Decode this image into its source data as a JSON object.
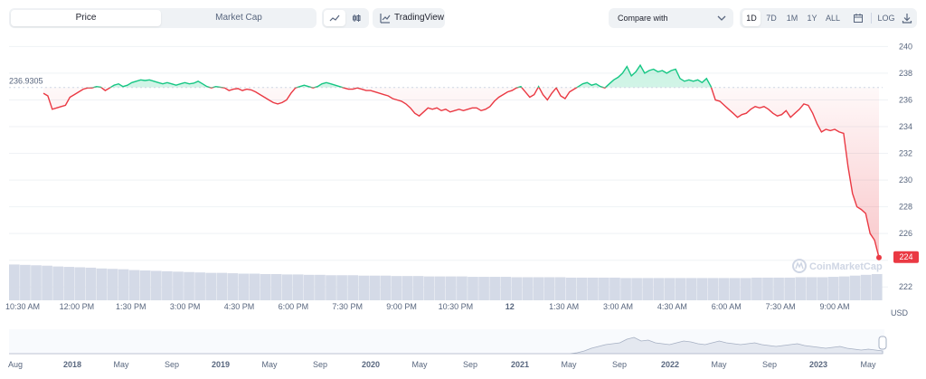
{
  "toolbar": {
    "tabs": [
      {
        "label": "Price",
        "active": true
      },
      {
        "label": "Market Cap",
        "active": false
      }
    ],
    "chart_type_icons": [
      "line-chart-icon",
      "candlestick-icon"
    ],
    "tradingview_label": "TradingView",
    "compare_label": "Compare with",
    "ranges": [
      "1D",
      "7D",
      "1M",
      "1Y",
      "ALL"
    ],
    "active_range": "1D",
    "log_label": "LOG"
  },
  "chart_data": {
    "type": "line",
    "currency": "USD",
    "watermark": "CoinMarketCap",
    "start_value_label": "236.9305",
    "current_value_label": "224",
    "baseline": 236.9305,
    "ylim": [
      221,
      240.5
    ],
    "y_ticks": [
      "240",
      "238",
      "236",
      "234",
      "232",
      "230",
      "228",
      "226",
      "224",
      "222"
    ],
    "x_tick_labels": [
      "10:30 AM",
      "12:00 PM",
      "1:30 PM",
      "3:00 PM",
      "4:30 PM",
      "6:00 PM",
      "7:30 PM",
      "9:00 PM",
      "10:30 PM",
      "12",
      "1:30 AM",
      "3:00 AM",
      "4:30 AM",
      "6:00 AM",
      "7:30 AM",
      "9:00 AM"
    ],
    "grid": "horizontal",
    "colors": {
      "up": "#16c784",
      "down": "#ea3943",
      "volume": "#cfd6e4",
      "grid": "#eff2f5"
    },
    "series": [
      {
        "values": [
          236.5,
          236.3,
          235.3,
          235.4,
          235.5,
          235.6,
          236.2,
          236.4,
          236.6,
          236.8,
          236.9,
          236.9,
          237.0,
          236.95,
          236.7,
          236.9,
          237.1,
          237.2,
          237.0,
          237.1,
          237.3,
          237.4,
          237.5,
          237.45,
          237.5,
          237.4,
          237.3,
          237.2,
          237.3,
          237.2,
          237.1,
          237.2,
          237.3,
          237.2,
          237.25,
          237.4,
          237.2,
          237.0,
          236.9,
          237.0,
          236.95,
          236.9,
          236.7,
          236.8,
          236.85,
          236.7,
          236.8,
          236.75,
          236.6,
          236.4,
          236.2,
          236.0,
          235.8,
          235.7,
          235.8,
          236.0,
          236.5,
          236.9,
          237.0,
          237.1,
          237.0,
          236.9,
          237.0,
          237.2,
          237.3,
          237.2,
          237.1,
          237.0,
          236.9,
          236.8,
          236.8,
          236.9,
          236.8,
          236.7,
          236.7,
          236.6,
          236.5,
          236.4,
          236.3,
          236.1,
          236.0,
          235.9,
          235.7,
          235.4,
          235.0,
          234.8,
          235.1,
          235.4,
          235.3,
          235.4,
          235.2,
          235.3,
          235.1,
          235.2,
          235.3,
          235.2,
          235.3,
          235.4,
          235.4,
          235.2,
          235.3,
          235.5,
          235.9,
          236.2,
          236.4,
          236.6,
          236.7,
          236.9,
          237.0,
          236.6,
          236.2,
          236.4,
          237.0,
          236.4,
          236.0,
          236.5,
          236.9,
          236.3,
          236.1,
          236.6,
          236.8,
          237.0,
          237.2,
          237.3,
          237.1,
          237.2,
          237.0,
          236.9,
          237.2,
          237.5,
          237.7,
          238.0,
          238.5,
          237.8,
          238.1,
          238.6,
          238.0,
          238.2,
          238.3,
          238.1,
          238.2,
          238.0,
          238.2,
          238.3,
          237.6,
          237.4,
          237.5,
          237.4,
          237.5,
          237.3,
          237.6,
          237.0,
          236.0,
          235.9,
          235.6,
          235.3,
          235.0,
          234.7,
          234.9,
          235.0,
          235.3,
          235.5,
          235.4,
          235.5,
          235.3,
          235.0,
          234.8,
          234.9,
          235.2,
          234.7,
          235.0,
          235.3,
          235.7,
          235.6,
          235.0,
          234.2,
          233.6,
          233.8,
          233.7,
          233.8,
          233.6,
          233.5,
          231.0,
          229.0,
          228.0,
          227.8,
          227.5,
          226.0,
          225.5,
          224.2
        ]
      }
    ],
    "volume_rel": [
      0.9,
      0.89,
      0.88,
      0.87,
      0.85,
      0.84,
      0.83,
      0.82,
      0.8,
      0.79,
      0.78,
      0.76,
      0.75,
      0.74,
      0.73,
      0.72,
      0.71,
      0.7,
      0.69,
      0.69,
      0.68,
      0.67,
      0.67,
      0.66,
      0.66,
      0.65,
      0.65,
      0.64,
      0.64,
      0.63,
      0.63,
      0.63,
      0.62,
      0.62,
      0.62,
      0.61,
      0.61,
      0.61,
      0.6,
      0.6,
      0.6,
      0.6,
      0.59,
      0.59,
      0.59,
      0.59,
      0.58,
      0.58,
      0.58,
      0.58,
      0.58,
      0.57,
      0.57,
      0.57,
      0.57,
      0.57,
      0.56,
      0.56,
      0.56,
      0.56,
      0.56,
      0.56,
      0.56,
      0.56,
      0.56,
      0.56,
      0.56,
      0.56,
      0.57,
      0.57,
      0.57,
      0.57,
      0.58,
      0.58,
      0.58,
      0.59,
      0.6,
      0.62,
      0.64,
      0.66
    ],
    "navigator": {
      "labels": [
        "Aug",
        "2018",
        "May",
        "Sep",
        "2019",
        "May",
        "Sep",
        "2020",
        "May",
        "Sep",
        "2021",
        "May",
        "Sep",
        "2022",
        "May",
        "Sep",
        "2023",
        "May"
      ],
      "profile": [
        0.0,
        0.0,
        0.0,
        0.0,
        0.0,
        0.0,
        0.0,
        0.0,
        0.0,
        0.0,
        0.0,
        0.0,
        0.0,
        0.0,
        0.0,
        0.0,
        0.0,
        0.0,
        0.0,
        0.0,
        0.0,
        0.0,
        0.0,
        0.0,
        0.0,
        0.0,
        0.0,
        0.0,
        0.0,
        0.0,
        0.0,
        0.0,
        0.0,
        0.0,
        0.0,
        0.0,
        0.0,
        0.0,
        0.0,
        0.0,
        0.0,
        0.0,
        0.0,
        0.0,
        0.0,
        0.0,
        0.0,
        0.0,
        0.0,
        0.0,
        0.0,
        0.0,
        0.0,
        0.0,
        0.0,
        0.0,
        0.0,
        0.0,
        0.0,
        0.0,
        0.0,
        0.0,
        0.0,
        0.0,
        0.0,
        0.0,
        0.0,
        0.0,
        0.0,
        0.0,
        0.0,
        0.0,
        0.0,
        0.0,
        0.0,
        0.0,
        0.0,
        0.0,
        0.0,
        0.0,
        0.05,
        0.15,
        0.3,
        0.4,
        0.5,
        0.55,
        0.6,
        0.8,
        0.9,
        0.7,
        0.75,
        0.6,
        0.55,
        0.5,
        0.6,
        0.7,
        0.65,
        0.55,
        0.5,
        0.6,
        0.7,
        0.6,
        0.55,
        0.5,
        0.55,
        0.6,
        0.5,
        0.45,
        0.4,
        0.45,
        0.5,
        0.55,
        0.45,
        0.4,
        0.35,
        0.3,
        0.35,
        0.4,
        0.3,
        0.25,
        0.2,
        0.25,
        0.2,
        0.15
      ]
    }
  }
}
